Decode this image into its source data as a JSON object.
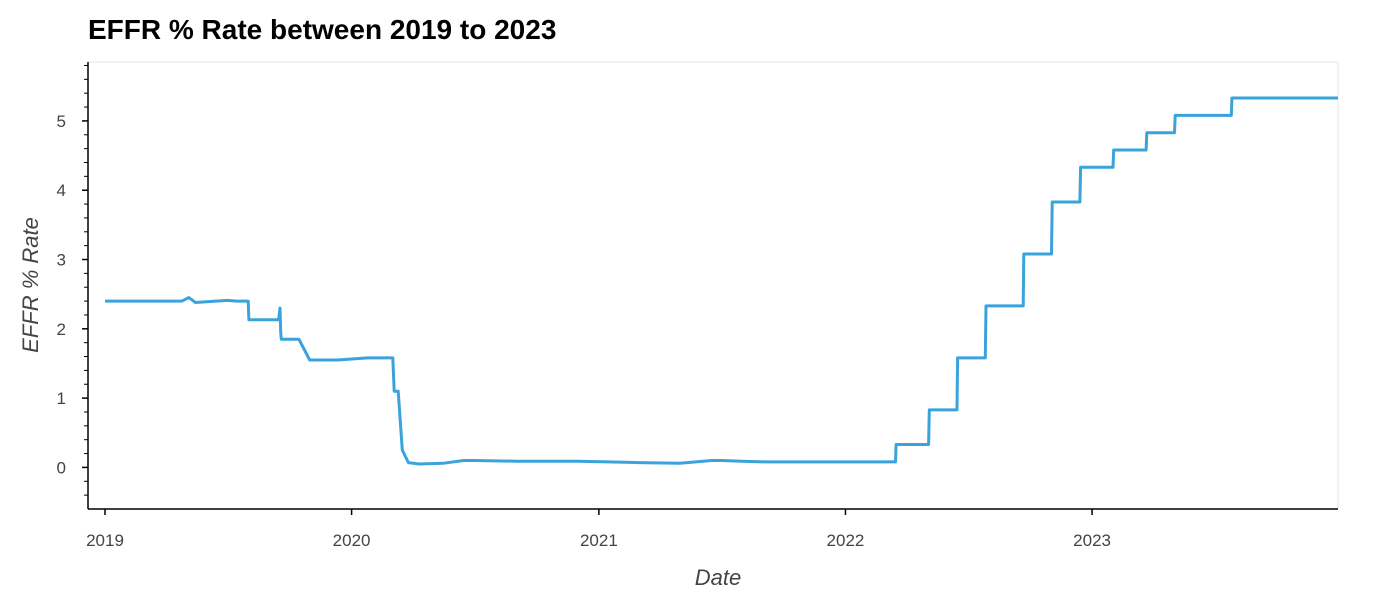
{
  "chart_data": {
    "type": "line",
    "title": "EFFR % Rate between 2019 to 2023",
    "xlabel": "Date",
    "ylabel": "EFFR % Rate",
    "xlim": [
      "2019-01-01",
      "2023-12-31"
    ],
    "ylim": [
      -0.6,
      5.85
    ],
    "x_ticks": [
      "2019",
      "2020",
      "2021",
      "2022",
      "2023"
    ],
    "y_ticks": [
      0,
      1,
      2,
      3,
      4,
      5
    ],
    "grid": false,
    "legend": "none",
    "series": [
      {
        "color": "#3ba3dc",
        "x": [
          "2019-01-01",
          "2019-04-25",
          "2019-05-05",
          "2019-05-15",
          "2019-07-01",
          "2019-07-15",
          "2019-08-01",
          "2019-08-02",
          "2019-09-15",
          "2019-09-17",
          "2019-09-18",
          "2019-09-19",
          "2019-10-15",
          "2019-10-31",
          "2019-12-10",
          "2019-12-11",
          "2020-01-25",
          "2020-03-02",
          "2020-03-04",
          "2020-03-10",
          "2020-03-16",
          "2020-03-25",
          "2020-04-10",
          "2020-05-15",
          "2020-06-15",
          "2020-07-01",
          "2020-09-01",
          "2020-12-01",
          "2021-01-15",
          "2021-03-01",
          "2021-05-01",
          "2021-06-17",
          "2021-07-01",
          "2021-08-01",
          "2021-09-01",
          "2022-01-01",
          "2022-03-16",
          "2022-03-17",
          "2022-05-04",
          "2022-05-05",
          "2022-06-15",
          "2022-06-16",
          "2022-07-27",
          "2022-07-28",
          "2022-09-21",
          "2022-09-22",
          "2022-11-02",
          "2022-11-03",
          "2022-12-14",
          "2022-12-15",
          "2023-02-01",
          "2023-02-02",
          "2023-03-22",
          "2023-03-23",
          "2023-05-03",
          "2023-05-04",
          "2023-07-26",
          "2023-07-27",
          "2023-12-31"
        ],
        "y": [
          2.4,
          2.4,
          2.45,
          2.38,
          2.41,
          2.4,
          2.4,
          2.13,
          2.13,
          2.3,
          1.95,
          1.85,
          1.85,
          1.55,
          1.55,
          1.55,
          1.58,
          1.58,
          1.1,
          1.1,
          0.25,
          0.07,
          0.05,
          0.06,
          0.1,
          0.1,
          0.09,
          0.09,
          0.08,
          0.07,
          0.06,
          0.1,
          0.1,
          0.09,
          0.08,
          0.08,
          0.08,
          0.33,
          0.33,
          0.83,
          0.83,
          1.58,
          1.58,
          2.33,
          2.33,
          3.08,
          3.08,
          3.83,
          3.83,
          4.33,
          4.33,
          4.58,
          4.58,
          4.83,
          4.83,
          5.08,
          5.08,
          5.33,
          5.33
        ]
      }
    ]
  }
}
